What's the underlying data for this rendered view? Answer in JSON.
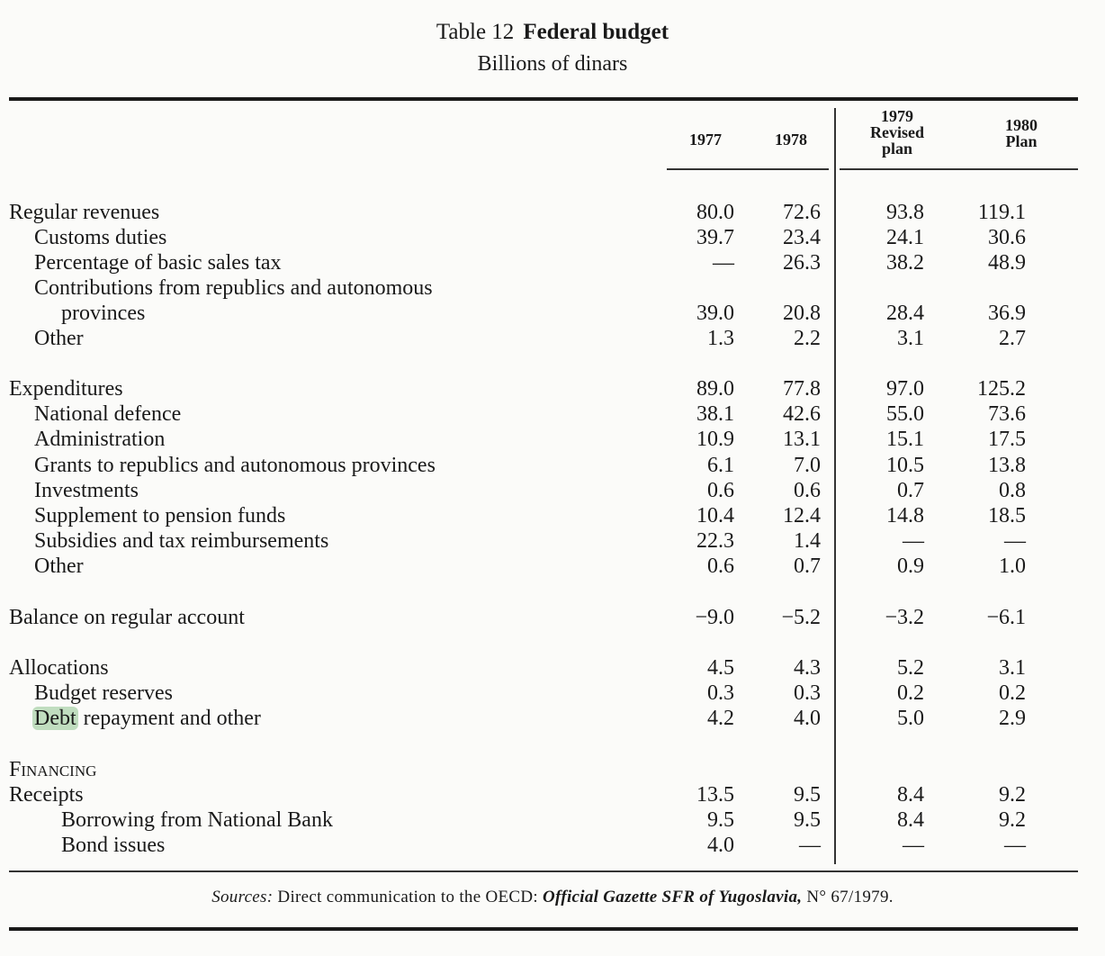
{
  "table": {
    "number": "Table 12",
    "title": "Federal budget",
    "unit": "Billions of dinars",
    "columns": [
      {
        "lines": [
          "1977"
        ]
      },
      {
        "lines": [
          "1978"
        ]
      },
      {
        "lines": [
          "1979",
          "Revised",
          "plan"
        ]
      },
      {
        "lines": [
          "1980",
          "Plan"
        ]
      }
    ],
    "rows": [
      {
        "label": "Regular revenues",
        "indent": 0,
        "values": [
          "80.0",
          "72.6",
          "93.8",
          "119.1"
        ]
      },
      {
        "label": "Customs duties",
        "indent": 1,
        "values": [
          "39.7",
          "23.4",
          "24.1",
          "30.6"
        ]
      },
      {
        "label": "Percentage of basic sales tax",
        "indent": 1,
        "values": [
          "—",
          "26.3",
          "38.2",
          "48.9"
        ]
      },
      {
        "label": "Contributions from republics and autonomous",
        "indent": 1,
        "values": [
          "",
          "",
          "",
          ""
        ]
      },
      {
        "label": "provinces",
        "indent": 2,
        "values": [
          "39.0",
          "20.8",
          "28.4",
          "36.9"
        ]
      },
      {
        "label": "Other",
        "indent": 1,
        "values": [
          "1.3",
          "2.2",
          "3.1",
          "2.7"
        ]
      },
      {
        "label": "Expenditures",
        "indent": 0,
        "values": [
          "89.0",
          "77.8",
          "97.0",
          "125.2"
        ]
      },
      {
        "label": "National defence",
        "indent": 1,
        "values": [
          "38.1",
          "42.6",
          "55.0",
          "73.6"
        ]
      },
      {
        "label": "Administration",
        "indent": 1,
        "values": [
          "10.9",
          "13.1",
          "15.1",
          "17.5"
        ]
      },
      {
        "label": "Grants to republics and autonomous provinces",
        "indent": 1,
        "values": [
          "6.1",
          "7.0",
          "10.5",
          "13.8"
        ]
      },
      {
        "label": "Investments",
        "indent": 1,
        "values": [
          "0.6",
          "0.6",
          "0.7",
          "0.8"
        ]
      },
      {
        "label": "Supplement to pension funds",
        "indent": 1,
        "values": [
          "10.4",
          "12.4",
          "14.8",
          "18.5"
        ]
      },
      {
        "label": "Subsidies and tax reimbursements",
        "indent": 1,
        "values": [
          "22.3",
          "1.4",
          "—",
          "—"
        ]
      },
      {
        "label": "Other",
        "indent": 1,
        "values": [
          "0.6",
          "0.7",
          "0.9",
          "1.0"
        ]
      },
      {
        "label": "Balance on regular account",
        "indent": 0,
        "values": [
          "−9.0",
          "−5.2",
          "−3.2",
          "−6.1"
        ]
      },
      {
        "label": "Allocations",
        "indent": 0,
        "values": [
          "4.5",
          "4.3",
          "5.2",
          "3.1"
        ]
      },
      {
        "label": "Budget reserves",
        "indent": 1,
        "values": [
          "0.3",
          "0.3",
          "0.2",
          "0.2"
        ]
      },
      {
        "label_highlight": "Debt",
        "label_rest": " repayment and other",
        "indent": 1,
        "values": [
          "4.2",
          "4.0",
          "5.0",
          "2.9"
        ]
      },
      {
        "label": "Financing",
        "indent": 0,
        "smallcaps": true,
        "values": [
          "",
          "",
          "",
          ""
        ]
      },
      {
        "label": "Receipts",
        "indent": 0,
        "values": [
          "13.5",
          "9.5",
          "8.4",
          "9.2"
        ]
      },
      {
        "label": "Borrowing from National Bank",
        "indent": 2,
        "values": [
          "9.5",
          "9.5",
          "8.4",
          "9.2"
        ]
      },
      {
        "label": "Bond issues",
        "indent": 2,
        "values": [
          "4.0",
          "—",
          "—",
          "—"
        ]
      }
    ],
    "sources": {
      "prefix": "Sources:",
      "text": " Direct communication to the OECD: ",
      "publication": "Official Gazette SFR of Yugoslavia,",
      "suffix": " N° 67/1979."
    }
  }
}
